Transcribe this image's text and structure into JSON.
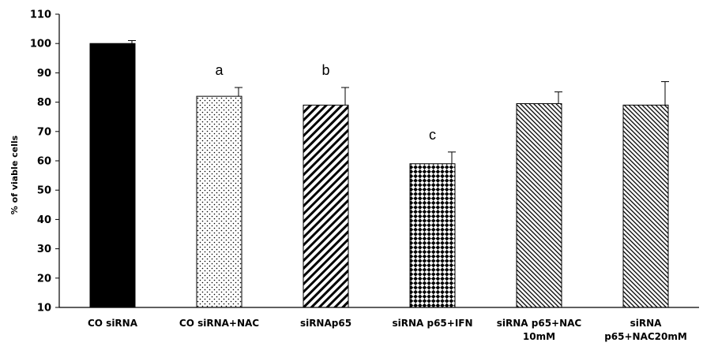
{
  "chart_data": {
    "type": "bar",
    "title": "",
    "xlabel": "",
    "ylabel": "% of viable cells",
    "ylim": [
      10,
      110
    ],
    "yticks": [
      10,
      20,
      30,
      40,
      50,
      60,
      70,
      80,
      90,
      100,
      110
    ],
    "grid": false,
    "categories": [
      [
        "CO siRNA"
      ],
      [
        "CO siRNA+NAC"
      ],
      [
        "siRNAp65"
      ],
      [
        "siRNA p65+IFN"
      ],
      [
        "siRNA p65+NAC",
        "10mM"
      ],
      [
        "siRNA",
        "p65+NAC20mM"
      ]
    ],
    "values": [
      100,
      82,
      79,
      59,
      79.5,
      79
    ],
    "errors": [
      1,
      3,
      6,
      4,
      4,
      8
    ],
    "annotations": [
      "",
      "a",
      "b",
      "c",
      "",
      ""
    ],
    "fills": [
      "solid-black",
      "dotted",
      "diagonal-thick",
      "checker",
      "diagonal-fine",
      "diagonal-fine"
    ]
  }
}
